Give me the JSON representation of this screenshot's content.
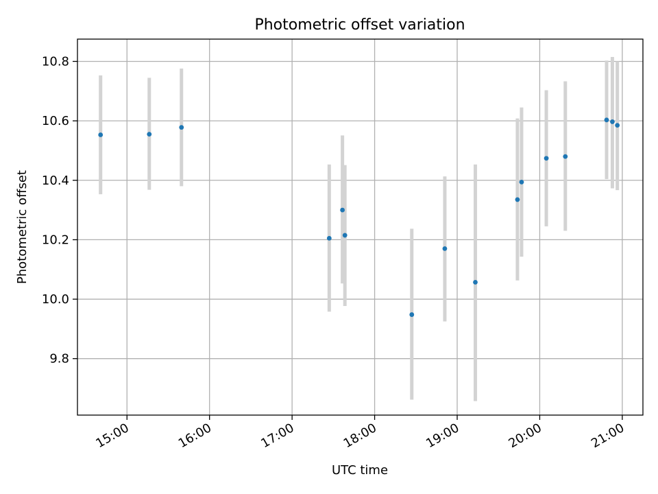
{
  "chart_data": {
    "type": "scatter",
    "title": "Photometric offset variation",
    "xlabel": "UTC time",
    "ylabel": "Photometric offset",
    "x_unit": "UTC hour of day",
    "xlim": [
      14.4,
      21.25
    ],
    "ylim": [
      9.61,
      10.875
    ],
    "x_ticks": [
      {
        "value": 15,
        "label": "15:00"
      },
      {
        "value": 16,
        "label": "16:00"
      },
      {
        "value": 17,
        "label": "17:00"
      },
      {
        "value": 18,
        "label": "18:00"
      },
      {
        "value": 19,
        "label": "19:00"
      },
      {
        "value": 20,
        "label": "20:00"
      },
      {
        "value": 21,
        "label": "21:00"
      }
    ],
    "y_ticks": [
      {
        "value": 9.8,
        "label": "9.8"
      },
      {
        "value": 10.0,
        "label": "10.0"
      },
      {
        "value": 10.2,
        "label": "10.2"
      },
      {
        "value": 10.4,
        "label": "10.4"
      },
      {
        "value": 10.6,
        "label": "10.6"
      },
      {
        "value": 10.8,
        "label": "10.8"
      }
    ],
    "grid": true,
    "point_color": "#1f77b4",
    "errorbar_color": "#d3d3d3",
    "points": [
      {
        "x": 14.68,
        "y": 10.553,
        "err_low": 10.353,
        "err_high": 10.753
      },
      {
        "x": 15.27,
        "y": 10.555,
        "err_low": 10.368,
        "err_high": 10.745
      },
      {
        "x": 15.66,
        "y": 10.578,
        "err_low": 10.38,
        "err_high": 10.776
      },
      {
        "x": 17.45,
        "y": 10.205,
        "err_low": 9.958,
        "err_high": 10.453
      },
      {
        "x": 17.61,
        "y": 10.3,
        "err_low": 10.053,
        "err_high": 10.551
      },
      {
        "x": 17.64,
        "y": 10.215,
        "err_low": 9.977,
        "err_high": 10.451
      },
      {
        "x": 18.45,
        "y": 9.948,
        "err_low": 9.662,
        "err_high": 10.237
      },
      {
        "x": 18.85,
        "y": 10.17,
        "err_low": 9.925,
        "err_high": 10.413
      },
      {
        "x": 19.22,
        "y": 10.057,
        "err_low": 9.657,
        "err_high": 10.453
      },
      {
        "x": 19.73,
        "y": 10.335,
        "err_low": 10.063,
        "err_high": 10.608
      },
      {
        "x": 19.78,
        "y": 10.394,
        "err_low": 10.143,
        "err_high": 10.645
      },
      {
        "x": 20.08,
        "y": 10.474,
        "err_low": 10.245,
        "err_high": 10.703
      },
      {
        "x": 20.31,
        "y": 10.48,
        "err_low": 10.23,
        "err_high": 10.733
      },
      {
        "x": 20.81,
        "y": 10.603,
        "err_low": 10.404,
        "err_high": 10.803
      },
      {
        "x": 20.88,
        "y": 10.597,
        "err_low": 10.373,
        "err_high": 10.815
      },
      {
        "x": 20.94,
        "y": 10.585,
        "err_low": 10.367,
        "err_high": 10.8
      }
    ]
  }
}
